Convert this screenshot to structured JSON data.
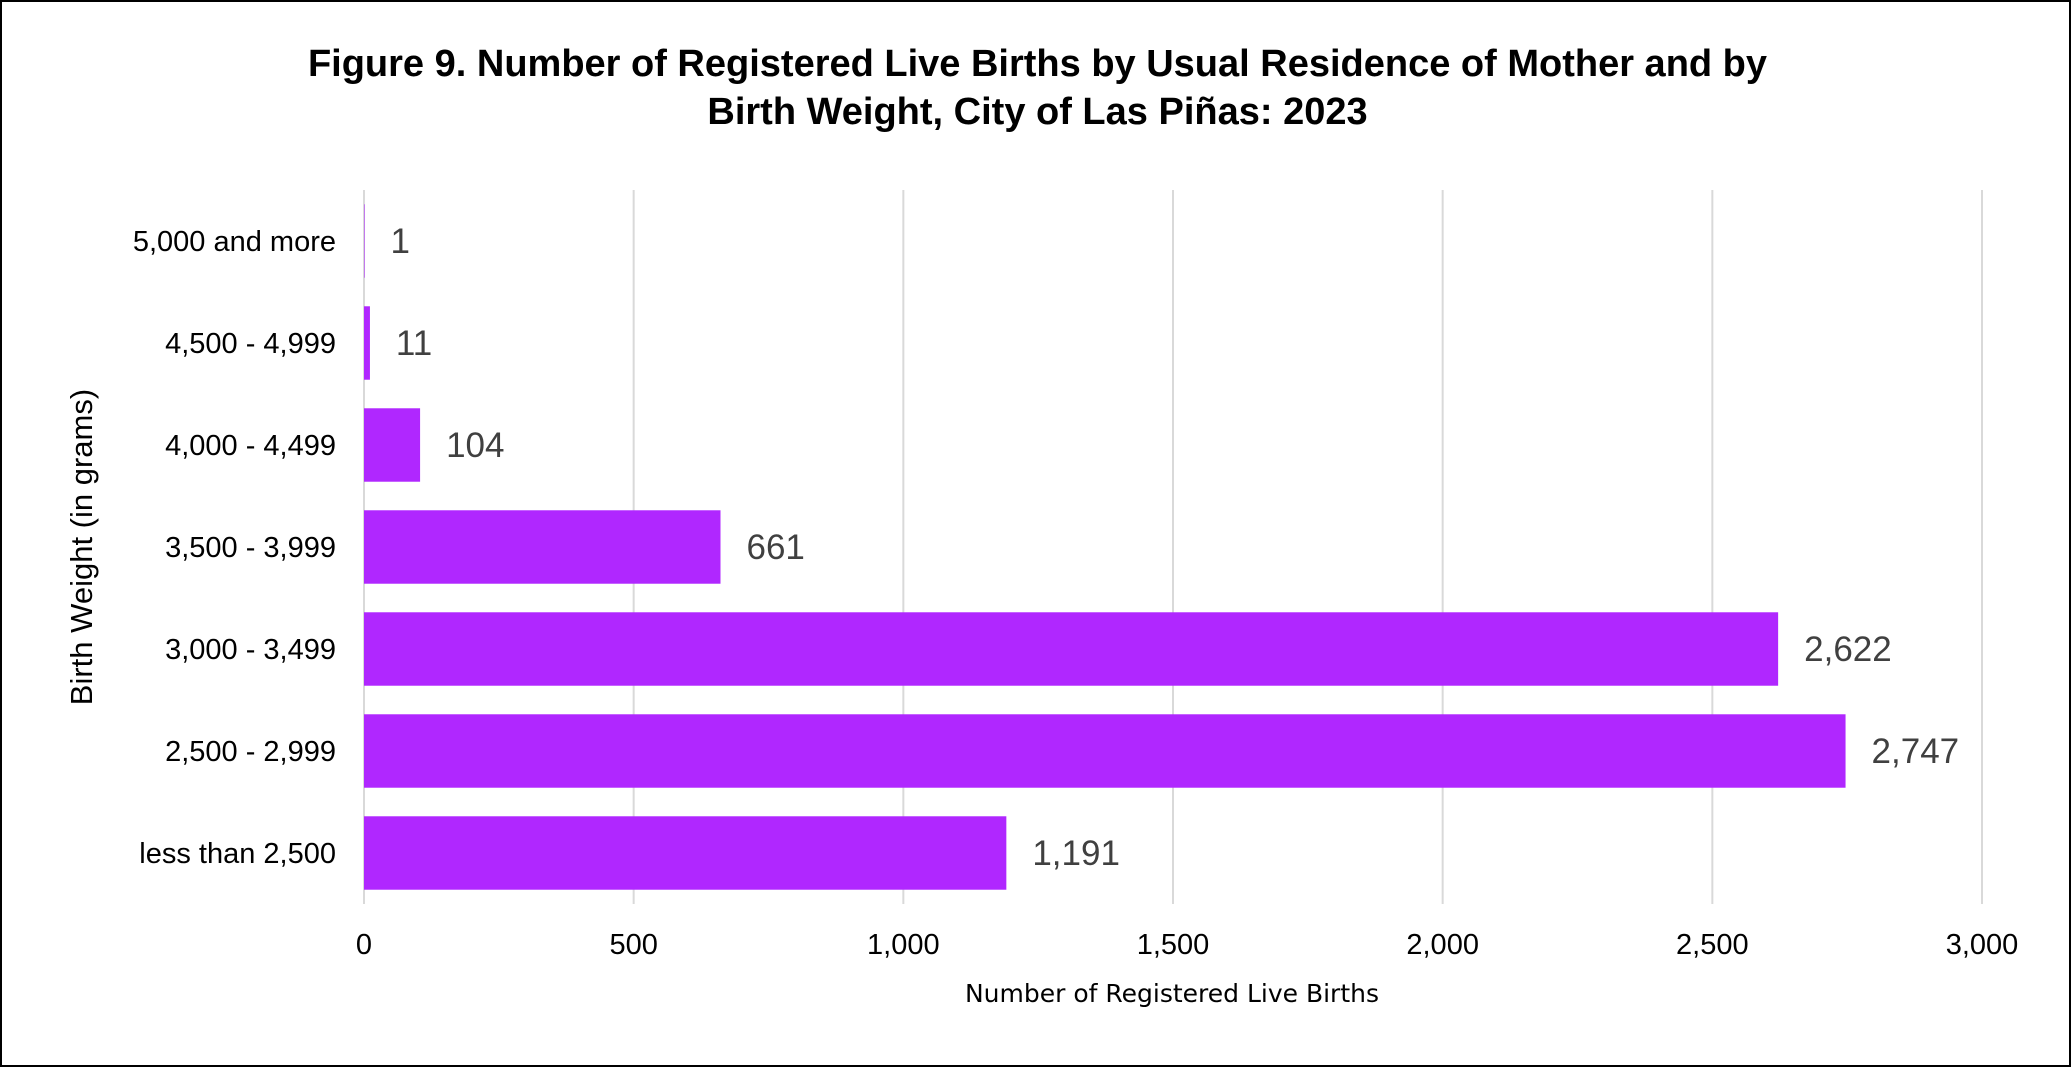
{
  "chart_data": {
    "type": "bar",
    "orientation": "horizontal",
    "title_lines": [
      "Figure 9. Number of Registered Live Births by Usual Residence of Mother and by",
      "Birth Weight, City of Las Piñas: 2023"
    ],
    "xlabel": "Number of Registered Live Births",
    "ylabel": "Birth Weight (in grams)",
    "categories": [
      "5,000 and more",
      "4,500 - 4,999",
      "4,000 - 4,499",
      "3,500 - 3,999",
      "3,000 - 3,499",
      "2,500 - 2,999",
      "less than 2,500"
    ],
    "values": [
      1,
      11,
      104,
      661,
      2622,
      2747,
      1191
    ],
    "data_labels": [
      "1",
      "11",
      "104",
      "661",
      "2,622",
      "2,747",
      "1,191"
    ],
    "xlim": [
      0,
      3000
    ],
    "xticks": [
      0,
      500,
      1000,
      1500,
      2000,
      2500,
      3000
    ],
    "xtick_labels": [
      "0",
      "500",
      "1,000",
      "1,500",
      "2,000",
      "2,500",
      "3,000"
    ],
    "grid": "vertical",
    "legend": "none",
    "bar_color": "#b027ff",
    "grid_color": "#d9d9d9"
  }
}
